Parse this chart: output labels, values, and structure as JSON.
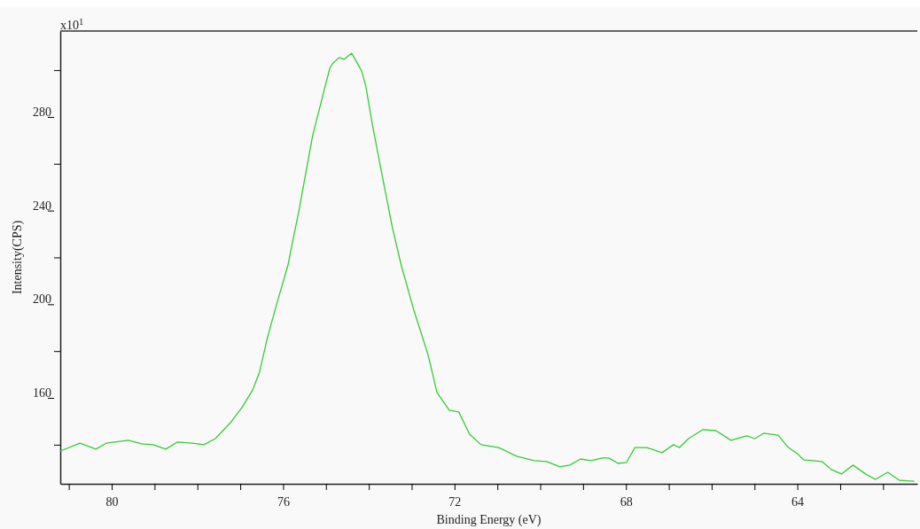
{
  "chart_data": {
    "type": "line",
    "xlabel": "Binding Energy (eV)",
    "ylabel": "Intensity(CPS)",
    "annotations": [
      "x10$^{1}$"
    ],
    "xlim": [
      81.2,
      61.2
    ],
    "ylim": [
      123.3,
      316.7
    ],
    "xticks": [
      {
        "value": 81,
        "label": null
      },
      80,
      {
        "value": 79,
        "label": null
      },
      {
        "value": 78,
        "label": null
      },
      {
        "value": 77,
        "label": null
      },
      76,
      {
        "value": 75,
        "label": null
      },
      {
        "value": 74,
        "label": null
      },
      {
        "value": 73,
        "label": null
      },
      72,
      {
        "value": 71,
        "label": null
      },
      {
        "value": 70,
        "label": null
      },
      {
        "value": 69,
        "label": null
      },
      68,
      {
        "value": 67,
        "label": null
      },
      {
        "value": 66,
        "label": null
      },
      {
        "value": 65,
        "label": null
      },
      64,
      {
        "value": 63,
        "label": null
      },
      {
        "value": 62,
        "label": null
      }
    ],
    "yticks": [
      {
        "value": 140,
        "label": null
      },
      160,
      {
        "value": 180,
        "label": null
      },
      200,
      {
        "value": 220,
        "label": null
      },
      240,
      {
        "value": 260,
        "label": null
      },
      280,
      {
        "value": 300,
        "label": null
      }
    ],
    "grid": false,
    "marker": "none",
    "line_style": "solid",
    "series": [
      {
        "color": "#33cc33",
        "x": [
          81.2,
          80.74,
          80.37,
          80.12,
          79.61,
          79.3,
          79.03,
          78.74,
          78.47,
          78.12,
          77.85,
          77.58,
          77.23,
          76.96,
          76.71,
          76.55,
          76.36,
          76.13,
          75.89,
          75.78,
          75.64,
          75.31,
          75.1,
          74.91,
          74.85,
          74.69,
          74.58,
          74.4,
          74.17,
          74.07,
          73.92,
          73.72,
          73.45,
          73.24,
          72.95,
          72.62,
          72.41,
          72.12,
          71.9,
          71.65,
          71.38,
          70.97,
          70.55,
          70.14,
          69.85,
          69.54,
          69.31,
          69.06,
          68.82,
          68.55,
          68.4,
          68.18,
          67.99,
          67.79,
          67.51,
          67.16,
          66.89,
          66.75,
          66.54,
          66.21,
          65.9,
          65.55,
          65.18,
          64.99,
          64.79,
          64.45,
          64.21,
          64.0,
          63.86,
          63.42,
          63.21,
          62.97,
          62.7,
          62.41,
          62.18,
          61.89,
          61.62,
          61.27
        ],
        "values": [
          137.3,
          140.7,
          138.1,
          140.7,
          141.9,
          140.4,
          140,
          138.1,
          141.1,
          140.7,
          140,
          142.6,
          149.4,
          155.9,
          163.4,
          171,
          186.2,
          201.3,
          216.4,
          226.6,
          239.1,
          272.1,
          287.2,
          300.8,
          302.7,
          305.4,
          304.6,
          307.2,
          299.7,
          293.2,
          277,
          258,
          232.7,
          216.4,
          197.5,
          178.6,
          162.3,
          154.7,
          154,
          144.5,
          140,
          138.8,
          135.1,
          133.2,
          132.8,
          130.5,
          131.3,
          133.9,
          133.2,
          134.3,
          134.3,
          132,
          132.4,
          138.8,
          138.8,
          136.6,
          140,
          138.8,
          142.6,
          146.4,
          146,
          141.9,
          143.8,
          142.6,
          144.9,
          144.1,
          138.8,
          136.2,
          133.6,
          132.8,
          129.4,
          127.5,
          131.3,
          127.5,
          125.2,
          128.2,
          124.8,
          124.4
        ]
      }
    ]
  }
}
